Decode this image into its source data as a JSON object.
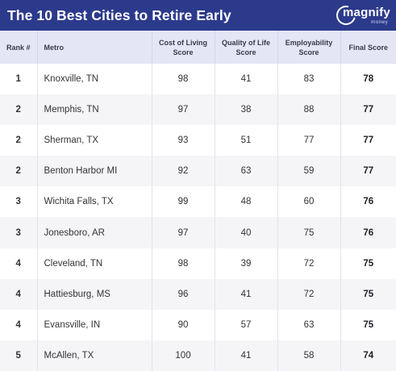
{
  "title": "The 10 Best Cities to Retire Early",
  "logo": {
    "word": "magnify",
    "sub": "money"
  },
  "columns": {
    "rank": "Rank #",
    "metro": "Metro",
    "cost": [
      "Cost of Living",
      "Score"
    ],
    "quality": [
      "Quality of Life",
      "Score"
    ],
    "employ": [
      "Employability",
      "Score"
    ],
    "final": "Final Score"
  },
  "rows": [
    {
      "rank": "1",
      "metro": "Knoxville, TN",
      "cost": "98",
      "quality": "41",
      "employ": "83",
      "final": "78"
    },
    {
      "rank": "2",
      "metro": "Memphis, TN",
      "cost": "97",
      "quality": "38",
      "employ": "88",
      "final": "77"
    },
    {
      "rank": "2",
      "metro": "Sherman, TX",
      "cost": "93",
      "quality": "51",
      "employ": "77",
      "final": "77"
    },
    {
      "rank": "2",
      "metro": "Benton Harbor MI",
      "cost": "92",
      "quality": "63",
      "employ": "59",
      "final": "77"
    },
    {
      "rank": "3",
      "metro": "Wichita Falls, TX",
      "cost": "99",
      "quality": "48",
      "employ": "60",
      "final": "76"
    },
    {
      "rank": "3",
      "metro": "Jonesboro, AR",
      "cost": "97",
      "quality": "40",
      "employ": "75",
      "final": "76"
    },
    {
      "rank": "4",
      "metro": "Cleveland, TN",
      "cost": "98",
      "quality": "39",
      "employ": "72",
      "final": "75"
    },
    {
      "rank": "4",
      "metro": "Hattiesburg, MS",
      "cost": "96",
      "quality": "41",
      "employ": "72",
      "final": "75"
    },
    {
      "rank": "4",
      "metro": "Evansville, IN",
      "cost": "90",
      "quality": "57",
      "employ": "63",
      "final": "75"
    },
    {
      "rank": "5",
      "metro": "McAllen, TX",
      "cost": "100",
      "quality": "41",
      "employ": "58",
      "final": "74"
    }
  ]
}
